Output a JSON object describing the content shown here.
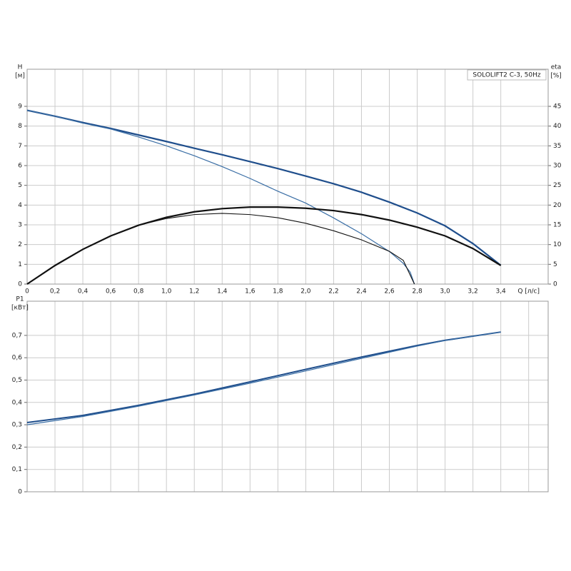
{
  "chart_data": [
    {
      "type": "line",
      "legend_title": "SOLOLIFT2 C-3, 50Hz",
      "y_label": "H",
      "y_unit": "[м]",
      "y2_label": "eta",
      "y2_unit": "[%]",
      "x_label": "Q [л/с]",
      "xlim": [
        0,
        3.74
      ],
      "xticks": [
        0,
        {
          "value": 0.2,
          "label": "0,2"
        },
        {
          "value": 0.4,
          "label": "0,4"
        },
        {
          "value": 0.6,
          "label": "0,6"
        },
        {
          "value": 0.8,
          "label": "0,8"
        },
        {
          "value": 1.0,
          "label": "1,0"
        },
        {
          "value": 1.2,
          "label": "1,2"
        },
        {
          "value": 1.4,
          "label": "1,4"
        },
        {
          "value": 1.6,
          "label": "1,6"
        },
        {
          "value": 1.8,
          "label": "1,8"
        },
        {
          "value": 2.0,
          "label": "2,0"
        },
        {
          "value": 2.2,
          "label": "2,2"
        },
        {
          "value": 2.4,
          "label": "2,4"
        },
        {
          "value": 2.6,
          "label": "2,6"
        },
        {
          "value": 2.8,
          "label": "2,8"
        },
        {
          "value": 3.0,
          "label": "3,0"
        },
        {
          "value": 3.2,
          "label": "3,2"
        },
        {
          "value": 3.4,
          "label": "3,4"
        }
      ],
      "ylim": [
        0,
        10.88
      ],
      "yticks": [
        0,
        1,
        2,
        3,
        4,
        5,
        6,
        7,
        8,
        9
      ],
      "y2lim": [
        0,
        54.4
      ],
      "y2ticks": [
        0,
        5,
        10,
        15,
        20,
        25,
        30,
        35,
        40,
        45
      ],
      "grid": true,
      "series": [
        {
          "color": "#1f4e8c",
          "width": 2.2,
          "x": [
            0,
            0.2,
            0.4,
            0.6,
            0.8,
            1.0,
            1.2,
            1.4,
            1.6,
            1.8,
            2.0,
            2.2,
            2.4,
            2.6,
            2.8,
            3.0,
            3.2,
            3.4
          ],
          "values": [
            8.8,
            8.5,
            8.18,
            7.88,
            7.55,
            7.22,
            6.88,
            6.55,
            6.2,
            5.85,
            5.47,
            5.08,
            4.65,
            4.15,
            3.6,
            2.95,
            2.05,
            0.95
          ]
        },
        {
          "color": "#3a6ea5",
          "width": 1.2,
          "x": [
            0,
            0.2,
            0.4,
            0.6,
            0.8,
            1.0,
            1.2,
            1.4,
            1.6,
            1.8,
            2.0,
            2.2,
            2.4,
            2.6,
            2.7,
            2.75,
            2.78
          ],
          "values": [
            8.8,
            8.5,
            8.15,
            7.85,
            7.45,
            7.0,
            6.5,
            5.95,
            5.35,
            4.7,
            4.1,
            3.35,
            2.55,
            1.65,
            1.05,
            0.6,
            0
          ]
        },
        {
          "color": "#111111",
          "width": 2.2,
          "axis": "y2",
          "x": [
            0,
            0.2,
            0.4,
            0.6,
            0.8,
            1.0,
            1.2,
            1.4,
            1.6,
            1.8,
            2.0,
            2.2,
            2.4,
            2.6,
            2.8,
            3.0,
            3.2,
            3.4
          ],
          "values": [
            0,
            4.7,
            8.8,
            12.2,
            14.9,
            16.9,
            18.3,
            19.1,
            19.5,
            19.5,
            19.2,
            18.6,
            17.6,
            16.2,
            14.4,
            12.2,
            9.0,
            4.7
          ]
        },
        {
          "color": "#111111",
          "width": 1.1,
          "axis": "y2",
          "x": [
            0,
            0.2,
            0.4,
            0.6,
            0.8,
            1.0,
            1.2,
            1.4,
            1.6,
            1.8,
            2.0,
            2.2,
            2.4,
            2.6,
            2.7,
            2.78
          ],
          "values": [
            0,
            4.7,
            8.8,
            12.2,
            14.9,
            16.6,
            17.6,
            17.9,
            17.6,
            16.8,
            15.4,
            13.5,
            11.2,
            8.3,
            6.0,
            0
          ]
        }
      ]
    },
    {
      "type": "line",
      "y_label": "P1",
      "y_unit": "[кВт]",
      "xlim": [
        0,
        3.74
      ],
      "xticks": [
        0,
        0.2,
        0.4,
        0.6,
        0.8,
        1.0,
        1.2,
        1.4,
        1.6,
        1.8,
        2.0,
        2.2,
        2.4,
        2.6,
        2.8,
        3.0,
        3.2,
        3.4,
        3.6
      ],
      "ylim": [
        0,
        0.853
      ],
      "yticks": [
        0,
        {
          "value": 0.1,
          "label": "0,1"
        },
        {
          "value": 0.2,
          "label": "0,2"
        },
        {
          "value": 0.3,
          "label": "0,3"
        },
        {
          "value": 0.4,
          "label": "0,4"
        },
        {
          "value": 0.5,
          "label": "0,5"
        },
        {
          "value": 0.6,
          "label": "0,6"
        },
        {
          "value": 0.7,
          "label": "0,7"
        }
      ],
      "grid": true,
      "series": [
        {
          "color": "#1f4e8c",
          "width": 2,
          "x": [
            0,
            0.4,
            0.8,
            1.2,
            1.6,
            2.0,
            2.4,
            2.8,
            3.0,
            3.4
          ],
          "values": [
            0.31,
            0.342,
            0.387,
            0.437,
            0.492,
            0.548,
            0.603,
            0.655,
            0.678,
            0.715
          ]
        },
        {
          "color": "#3a6ea5",
          "width": 1.2,
          "x": [
            0,
            0.4,
            0.8,
            1.2,
            1.6,
            2.0,
            2.4,
            2.8,
            3.0,
            3.4
          ],
          "values": [
            0.3,
            0.337,
            0.383,
            0.433,
            0.486,
            0.541,
            0.597,
            0.652,
            0.677,
            0.715
          ]
        }
      ]
    }
  ]
}
